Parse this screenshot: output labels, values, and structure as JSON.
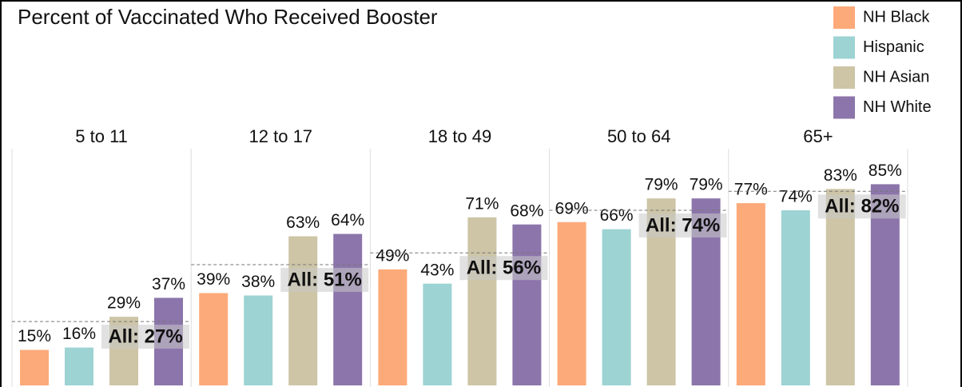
{
  "chart_data": {
    "type": "bar",
    "title": "Percent of Vaccinated Who Received Booster",
    "categories": [
      "5 to 11",
      "12 to 17",
      "18 to 49",
      "50 to 64",
      "65+"
    ],
    "series": [
      {
        "name": "NH Black",
        "color": "#fdaa7a",
        "values": [
          15,
          39,
          49,
          69,
          77
        ],
        "value_labels": [
          "15%",
          "39%",
          "49%",
          "69%",
          "77%"
        ]
      },
      {
        "name": "Hispanic",
        "color": "#9dd3d3",
        "values": [
          16,
          38,
          43,
          66,
          74
        ],
        "value_labels": [
          "16%",
          "38%",
          "43%",
          "66%",
          "74%"
        ]
      },
      {
        "name": "NH Asian",
        "color": "#cdc5a6",
        "values": [
          29,
          63,
          71,
          79,
          83
        ],
        "value_labels": [
          "29%",
          "63%",
          "71%",
          "79%",
          "83%"
        ]
      },
      {
        "name": "NH White",
        "color": "#8c75ab",
        "values": [
          37,
          64,
          68,
          79,
          85
        ],
        "value_labels": [
          "37%",
          "64%",
          "68%",
          "79%",
          "85%"
        ]
      }
    ],
    "overall": [
      27,
      51,
      56,
      74,
      82
    ],
    "overall_labels": [
      "All: 27%",
      "All: 51%",
      "All: 56%",
      "All: 74%",
      "All: 82%"
    ],
    "ylim": [
      0,
      100
    ]
  }
}
